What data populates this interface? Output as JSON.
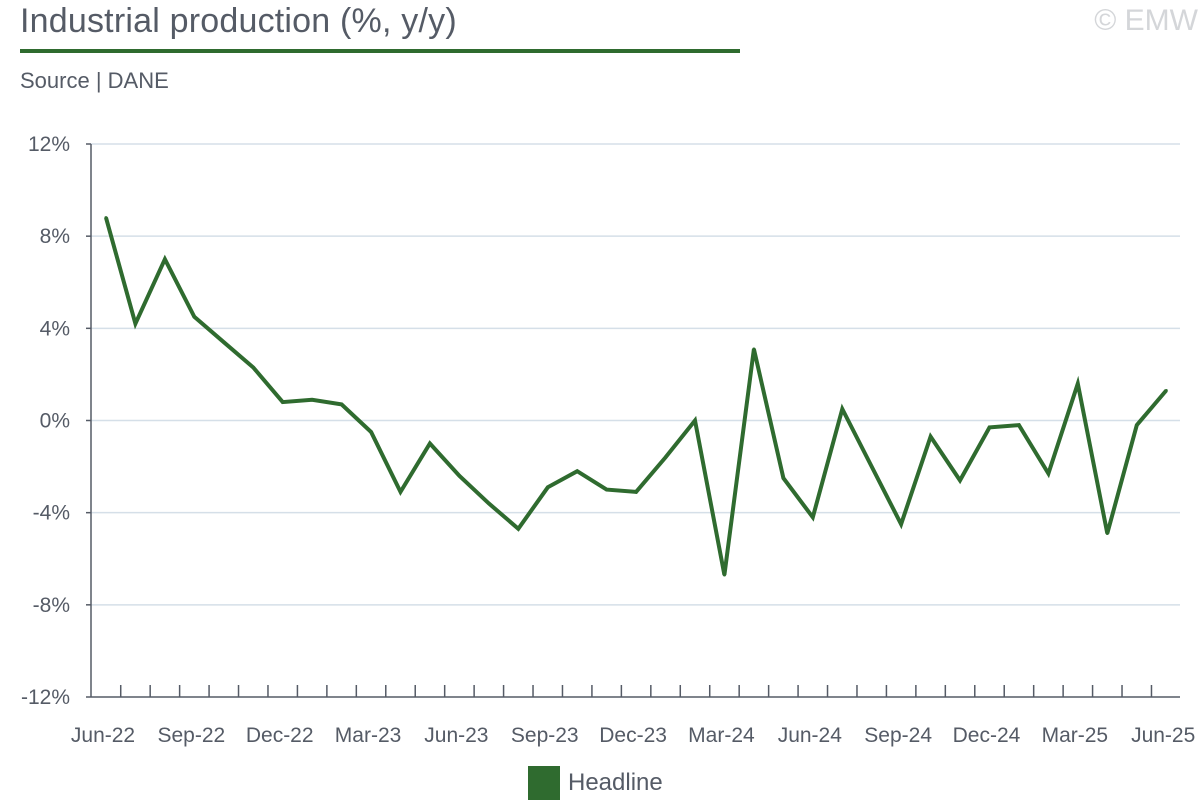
{
  "header": {
    "title": "Industrial production (%, y/y)",
    "source": "Source | DANE",
    "watermark": "© EMW"
  },
  "colors": {
    "line": "#2f6b2f",
    "grid": "#d5dfe8",
    "axis": "#555b66",
    "text": "#555b66"
  },
  "chart_data": {
    "type": "line",
    "title": "Industrial production (%, y/y)",
    "xlabel": "",
    "ylabel": "",
    "ylim": [
      -12,
      12
    ],
    "y_ticks": [
      12,
      8,
      4,
      0,
      -4,
      -8,
      -12
    ],
    "y_tick_labels": [
      "12%",
      "8%",
      "4%",
      "0%",
      "-4%",
      "-8%",
      "-12%"
    ],
    "x_tick_labels": [
      "Jun-22",
      "Sep-22",
      "Dec-22",
      "Mar-23",
      "Jun-23",
      "Sep-23",
      "Dec-23",
      "Mar-24",
      "Jun-24",
      "Sep-24",
      "Dec-24",
      "Mar-25",
      "Jun-25"
    ],
    "grid": true,
    "legend_position": "bottom-center",
    "categories": [
      "Jun-22",
      "Jul-22",
      "Aug-22",
      "Sep-22",
      "Oct-22",
      "Nov-22",
      "Dec-22",
      "Jan-23",
      "Feb-23",
      "Mar-23",
      "Apr-23",
      "May-23",
      "Jun-23",
      "Jul-23",
      "Aug-23",
      "Sep-23",
      "Oct-23",
      "Nov-23",
      "Dec-23",
      "Jan-24",
      "Feb-24",
      "Mar-24",
      "Apr-24",
      "May-24",
      "Jun-24",
      "Jul-24",
      "Aug-24",
      "Sep-24",
      "Oct-24",
      "Nov-24",
      "Dec-24",
      "Jan-25",
      "Feb-25",
      "Mar-25",
      "Apr-25",
      "May-25",
      "Jun-25"
    ],
    "series": [
      {
        "name": "Headline",
        "values": [
          8.8,
          4.2,
          7.0,
          4.5,
          3.4,
          2.3,
          0.8,
          0.9,
          0.7,
          -0.5,
          -3.1,
          -1.0,
          -2.4,
          -3.6,
          -4.7,
          -2.9,
          -2.2,
          -3.0,
          -3.1,
          -1.6,
          0.0,
          -6.7,
          3.1,
          -2.5,
          -4.2,
          0.5,
          -2.0,
          -4.5,
          -0.7,
          -2.6,
          -0.3,
          -0.2,
          -2.3,
          1.6,
          -4.9,
          -0.2,
          1.3
        ]
      }
    ]
  }
}
